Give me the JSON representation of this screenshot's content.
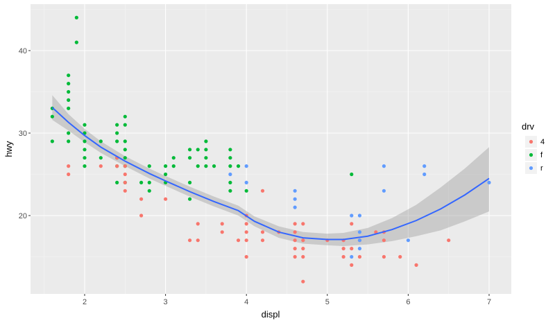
{
  "chart_data": {
    "type": "scatter",
    "title": "",
    "xlabel": "displ",
    "ylabel": "hwy",
    "xlim": [
      1.33,
      7.27
    ],
    "ylim": [
      10.4,
      45.6
    ],
    "x_ticks": [
      2,
      3,
      4,
      5,
      6,
      7
    ],
    "y_ticks": [
      20,
      30,
      40
    ],
    "grid": true,
    "legend": {
      "title": "drv",
      "position": "right",
      "entries": [
        {
          "label": "4",
          "color": "#F8766D"
        },
        {
          "label": "f",
          "color": "#00BA38"
        },
        {
          "label": "r",
          "color": "#619CFF"
        }
      ]
    },
    "series": [
      {
        "name": "f",
        "color": "#00BA38",
        "points": [
          [
            1.6,
            33
          ],
          [
            1.6,
            32
          ],
          [
            1.6,
            29
          ],
          [
            1.8,
            37
          ],
          [
            1.8,
            36
          ],
          [
            1.8,
            35
          ],
          [
            1.8,
            34
          ],
          [
            1.8,
            33
          ],
          [
            1.8,
            30
          ],
          [
            1.8,
            29
          ],
          [
            1.9,
            44
          ],
          [
            1.9,
            41
          ],
          [
            2.0,
            31
          ],
          [
            2.0,
            30
          ],
          [
            2.0,
            29
          ],
          [
            2.0,
            28
          ],
          [
            2.0,
            27
          ],
          [
            2.0,
            26
          ],
          [
            2.2,
            29
          ],
          [
            2.2,
            27
          ],
          [
            2.4,
            31
          ],
          [
            2.4,
            30
          ],
          [
            2.4,
            29
          ],
          [
            2.4,
            27
          ],
          [
            2.4,
            26
          ],
          [
            2.4,
            24
          ],
          [
            2.5,
            32
          ],
          [
            2.5,
            31
          ],
          [
            2.5,
            29
          ],
          [
            2.5,
            28
          ],
          [
            2.5,
            27
          ],
          [
            2.5,
            26
          ],
          [
            2.5,
            24
          ],
          [
            2.7,
            24
          ],
          [
            2.8,
            26
          ],
          [
            2.8,
            24
          ],
          [
            2.8,
            23
          ],
          [
            3.0,
            26
          ],
          [
            3.0,
            25
          ],
          [
            3.0,
            24
          ],
          [
            3.1,
            27
          ],
          [
            3.1,
            26
          ],
          [
            3.3,
            28
          ],
          [
            3.3,
            27
          ],
          [
            3.3,
            24
          ],
          [
            3.3,
            22
          ],
          [
            3.4,
            28
          ],
          [
            3.4,
            26
          ],
          [
            3.5,
            29
          ],
          [
            3.5,
            28
          ],
          [
            3.5,
            27
          ],
          [
            3.5,
            26
          ],
          [
            3.6,
            26
          ],
          [
            3.8,
            28
          ],
          [
            3.8,
            27
          ],
          [
            3.8,
            26
          ],
          [
            3.8,
            24
          ],
          [
            3.8,
            23
          ],
          [
            3.9,
            26
          ],
          [
            4.0,
            23
          ],
          [
            5.3,
            25
          ]
        ]
      },
      {
        "name": "4",
        "color": "#F8766D",
        "points": [
          [
            1.8,
            26
          ],
          [
            1.8,
            25
          ],
          [
            2.2,
            26
          ],
          [
            2.4,
            27
          ],
          [
            2.4,
            26
          ],
          [
            2.5,
            26
          ],
          [
            2.5,
            25
          ],
          [
            2.5,
            24
          ],
          [
            2.5,
            23
          ],
          [
            2.7,
            22
          ],
          [
            2.7,
            20
          ],
          [
            3.0,
            22
          ],
          [
            3.3,
            17
          ],
          [
            3.4,
            19
          ],
          [
            3.4,
            17
          ],
          [
            3.7,
            19
          ],
          [
            3.7,
            18
          ],
          [
            3.9,
            17
          ],
          [
            4.0,
            20
          ],
          [
            4.0,
            19
          ],
          [
            4.0,
            18
          ],
          [
            4.0,
            17
          ],
          [
            4.0,
            15
          ],
          [
            4.2,
            23
          ],
          [
            4.2,
            18
          ],
          [
            4.2,
            17
          ],
          [
            4.4,
            18
          ],
          [
            4.6,
            19
          ],
          [
            4.6,
            18
          ],
          [
            4.6,
            17
          ],
          [
            4.6,
            16
          ],
          [
            4.6,
            15
          ],
          [
            4.7,
            19
          ],
          [
            4.7,
            17
          ],
          [
            4.7,
            16
          ],
          [
            4.7,
            15
          ],
          [
            4.7,
            12
          ],
          [
            5.0,
            17
          ],
          [
            5.2,
            17
          ],
          [
            5.2,
            16
          ],
          [
            5.2,
            15
          ],
          [
            5.3,
            19
          ],
          [
            5.3,
            16
          ],
          [
            5.3,
            14
          ],
          [
            5.4,
            17
          ],
          [
            5.4,
            15
          ],
          [
            5.6,
            18
          ],
          [
            5.7,
            18
          ],
          [
            5.7,
            17
          ],
          [
            5.7,
            15
          ],
          [
            5.9,
            15
          ],
          [
            6.1,
            14
          ],
          [
            6.5,
            17
          ]
        ]
      },
      {
        "name": "r",
        "color": "#619CFF",
        "points": [
          [
            3.8,
            25
          ],
          [
            4.0,
            26
          ],
          [
            4.0,
            24
          ],
          [
            4.6,
            23
          ],
          [
            4.6,
            22
          ],
          [
            4.6,
            21
          ],
          [
            5.3,
            20
          ],
          [
            5.3,
            15
          ],
          [
            5.4,
            20
          ],
          [
            5.4,
            18
          ],
          [
            5.4,
            17
          ],
          [
            5.4,
            16
          ],
          [
            5.7,
            26
          ],
          [
            5.7,
            23
          ],
          [
            6.0,
            17
          ],
          [
            6.2,
            26
          ],
          [
            6.2,
            25
          ],
          [
            7.0,
            24
          ]
        ]
      }
    ],
    "smooth": {
      "method": "loess",
      "color": "#3366FF",
      "x": [
        1.6,
        1.8,
        2.0,
        2.2,
        2.5,
        2.8,
        3.0,
        3.3,
        3.6,
        3.9,
        4.1,
        4.4,
        4.7,
        5.0,
        5.2,
        5.5,
        5.8,
        6.1,
        6.4,
        6.7,
        7.0
      ],
      "y": [
        33.1,
        31.3,
        29.7,
        28.3,
        26.6,
        25.1,
        24.2,
        22.9,
        21.7,
        20.6,
        19.3,
        18.0,
        17.3,
        17.1,
        17.1,
        17.5,
        18.3,
        19.4,
        20.8,
        22.5,
        24.5
      ],
      "upper": [
        34.6,
        32.3,
        30.5,
        29.0,
        27.2,
        25.7,
        24.8,
        23.5,
        22.3,
        21.2,
        19.9,
        18.7,
        18.0,
        17.8,
        17.9,
        18.5,
        19.7,
        21.3,
        23.4,
        25.7,
        28.3
      ],
      "lower": [
        31.6,
        30.3,
        28.9,
        27.6,
        26.0,
        24.5,
        23.6,
        22.3,
        21.1,
        20.0,
        18.7,
        17.3,
        16.6,
        16.4,
        16.3,
        16.5,
        16.9,
        17.5,
        18.2,
        19.3,
        20.5
      ]
    }
  }
}
